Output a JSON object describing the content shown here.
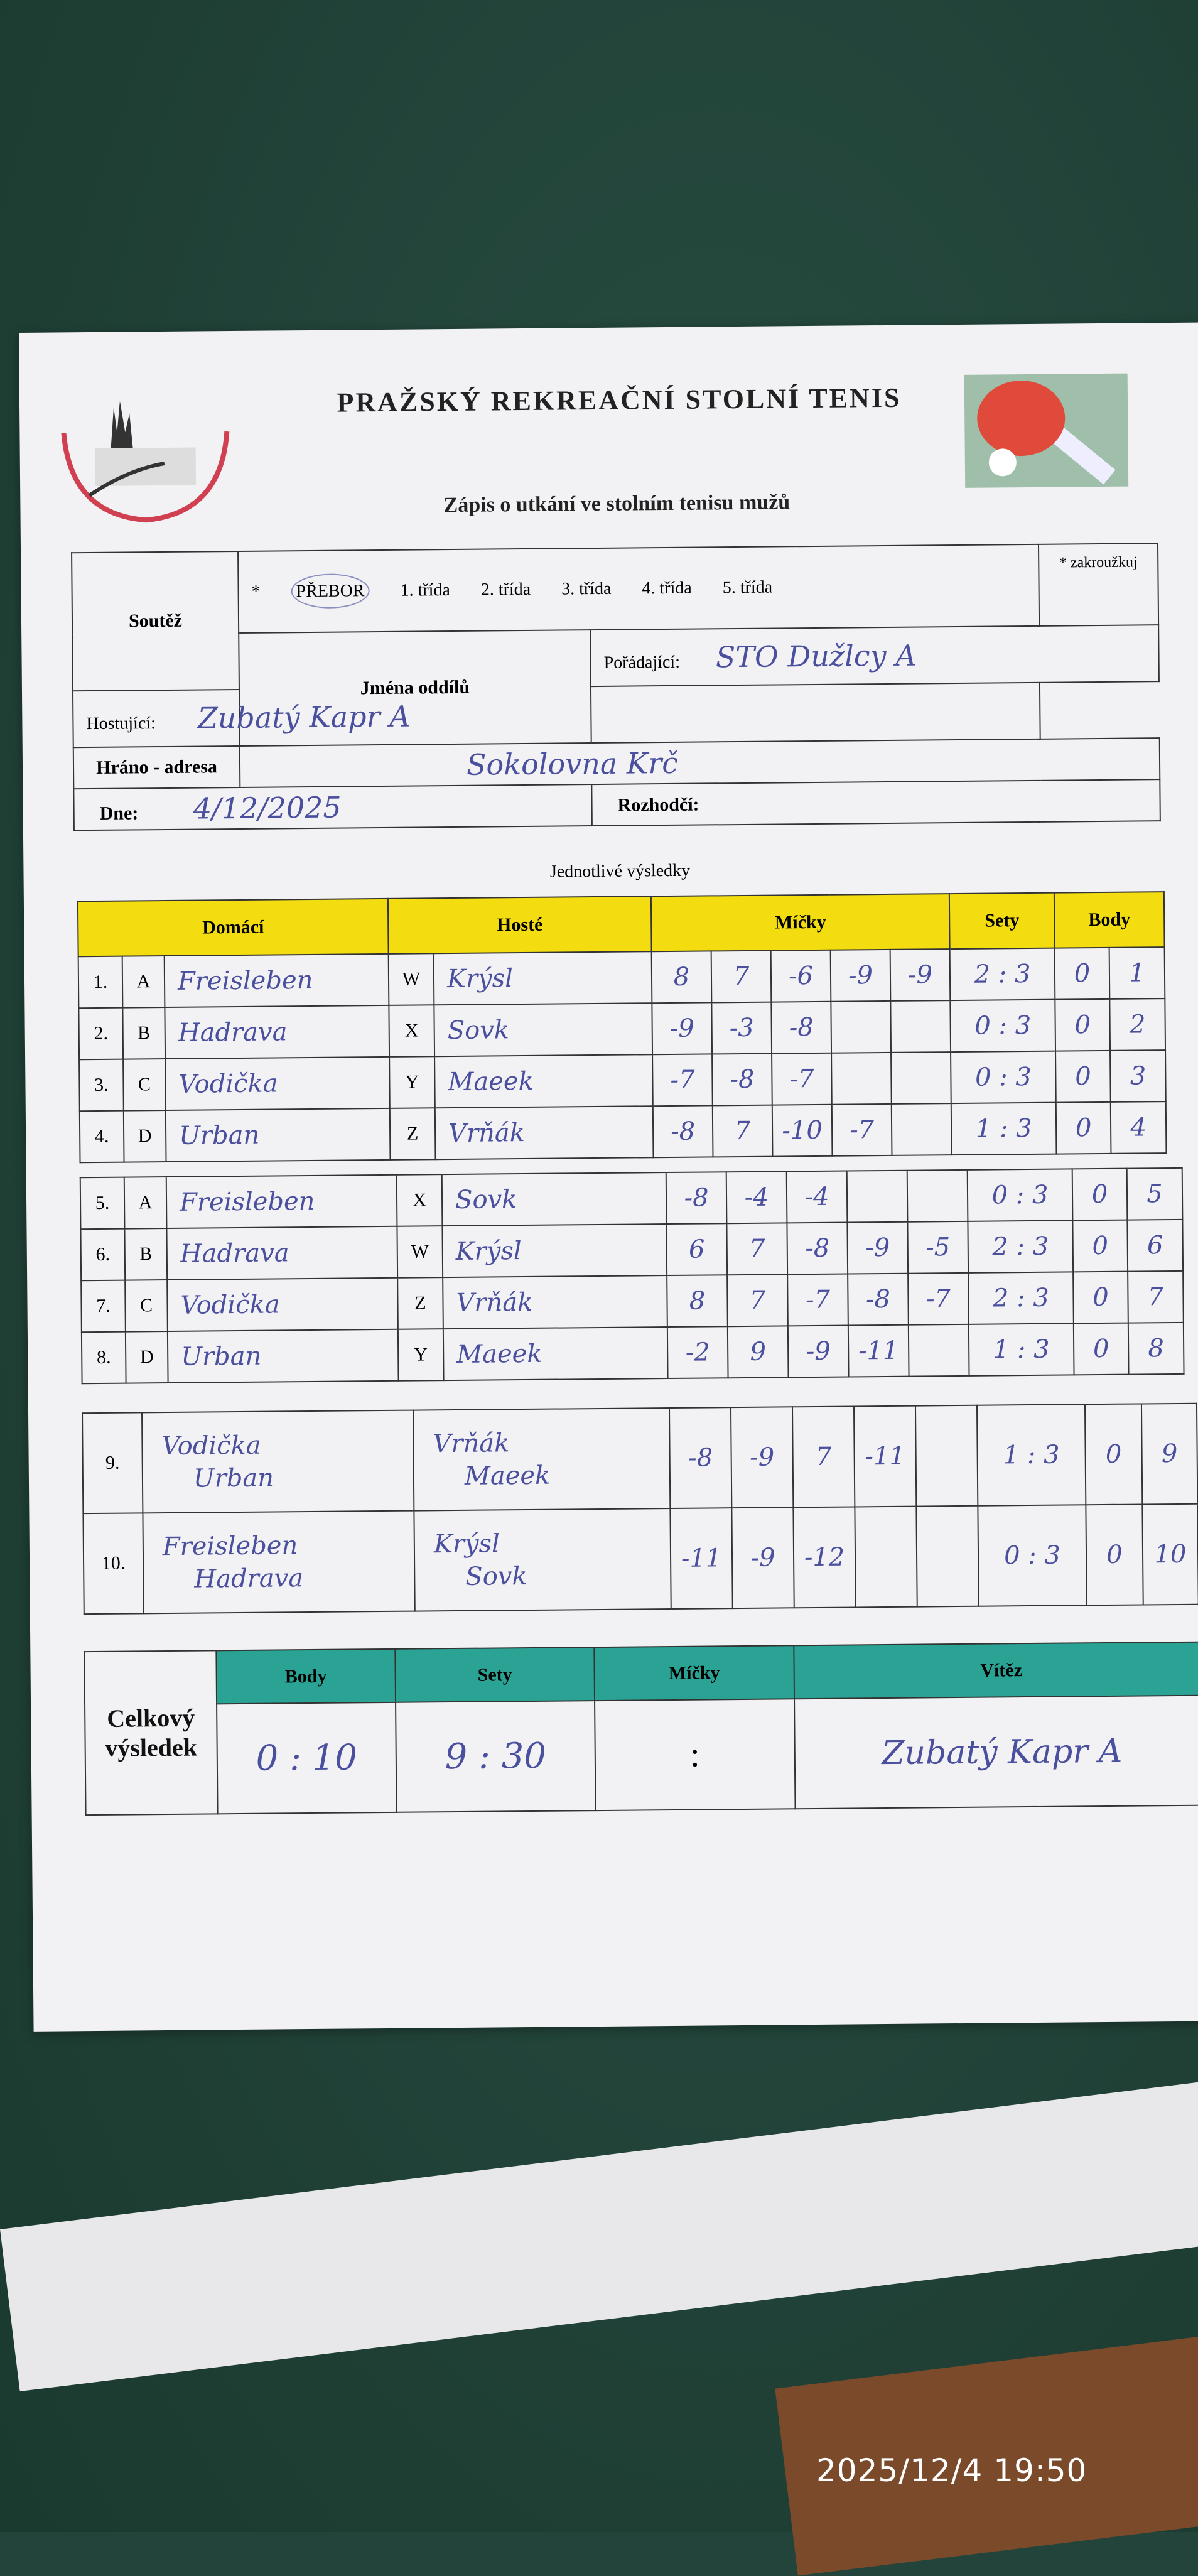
{
  "timestamp": "2025/12/4 19:50",
  "header": {
    "title": "PRAŽSKÝ REKREAČNÍ STOLNÍ TENIS",
    "subtitle": "Zápis o utkání ve stolním tenisu mužů",
    "logo_text": "PRAŽSKÝ REKREAČNÍ STOLNÍ TENIS"
  },
  "info": {
    "competition_label": "Soutěž",
    "star": "*",
    "competition_options": [
      "PŘEBOR",
      "1. třída",
      "2. třída",
      "3. třída",
      "4. třída",
      "5. třída"
    ],
    "selected_option": "PŘEBOR",
    "note": "* zakroužkuj",
    "teams_label": "Jména oddílů",
    "home_label": "Pořádající:",
    "home_value": "STO Dužlcy A",
    "guest_label": "Hostující:",
    "guest_value": "Zubatý Kapr A",
    "venue_label": "Hráno - adresa",
    "venue_value": "Sokolovna Krč",
    "date_label": "Dne:",
    "date_value": "4/12/2025",
    "referee_label": "Rozhodčí:",
    "referee_value": ""
  },
  "results": {
    "section_title": "Jednotlivé výsledky",
    "headers": {
      "home": "Domácí",
      "guest": "Hosté",
      "balls": "Míčky",
      "sets": "Sety",
      "points": "Body"
    },
    "singles": [
      {
        "no": "1.",
        "hl": "A",
        "home": "Freisleben",
        "gl": "W",
        "guest": "Krýsl",
        "balls": [
          "8",
          "7",
          "-6",
          "-9",
          "-9"
        ],
        "sets": "2 : 3",
        "ph": "0",
        "pg": "1"
      },
      {
        "no": "2.",
        "hl": "B",
        "home": "Hadrava",
        "gl": "X",
        "guest": "Sovk",
        "balls": [
          "-9",
          "-3",
          "-8",
          "",
          ""
        ],
        "sets": "0 : 3",
        "ph": "0",
        "pg": "2"
      },
      {
        "no": "3.",
        "hl": "C",
        "home": "Vodička",
        "gl": "Y",
        "guest": "Maeek",
        "balls": [
          "-7",
          "-8",
          "-7",
          "",
          ""
        ],
        "sets": "0 : 3",
        "ph": "0",
        "pg": "3"
      },
      {
        "no": "4.",
        "hl": "D",
        "home": "Urban",
        "gl": "Z",
        "guest": "Vrňák",
        "balls": [
          "-8",
          "7",
          "-10",
          "-7",
          ""
        ],
        "sets": "1 : 3",
        "ph": "0",
        "pg": "4"
      },
      {
        "no": "5.",
        "hl": "A",
        "home": "Freisleben",
        "gl": "X",
        "guest": "Sovk",
        "balls": [
          "-8",
          "-4",
          "-4",
          "",
          ""
        ],
        "sets": "0 : 3",
        "ph": "0",
        "pg": "5"
      },
      {
        "no": "6.",
        "hl": "B",
        "home": "Hadrava",
        "gl": "W",
        "guest": "Krýsl",
        "balls": [
          "6",
          "7",
          "-8",
          "-9",
          "-5"
        ],
        "sets": "2 : 3",
        "ph": "0",
        "pg": "6"
      },
      {
        "no": "7.",
        "hl": "C",
        "home": "Vodička",
        "gl": "Z",
        "guest": "Vrňák",
        "balls": [
          "8",
          "7",
          "-7",
          "-8",
          "-7"
        ],
        "sets": "2 : 3",
        "ph": "0",
        "pg": "7"
      },
      {
        "no": "8.",
        "hl": "D",
        "home": "Urban",
        "gl": "Y",
        "guest": "Maeek",
        "balls": [
          "-2",
          "9",
          "-9",
          "-11",
          ""
        ],
        "sets": "1 : 3",
        "ph": "0",
        "pg": "8"
      }
    ],
    "doubles": [
      {
        "no": "9.",
        "home1": "Vodička",
        "home2": "Urban",
        "guest1": "Vrňák",
        "guest2": "Maeek",
        "balls": [
          "-8",
          "-9",
          "7",
          "-11",
          ""
        ],
        "sets": "1 : 3",
        "ph": "0",
        "pg": "9"
      },
      {
        "no": "10.",
        "home1": "Freisleben",
        "home2": "Hadrava",
        "guest1": "Krýsl",
        "guest2": "Sovk",
        "balls": [
          "-11",
          "-9",
          "-12",
          "",
          ""
        ],
        "sets": "0 : 3",
        "ph": "0",
        "pg": "10"
      }
    ]
  },
  "totals": {
    "label": "Celkový výsledek",
    "headers": {
      "points": "Body",
      "sets": "Sety",
      "balls": "Míčky",
      "winner": "Vítěz"
    },
    "points": "0 : 10",
    "sets": "9 : 30",
    "balls": ":",
    "winner": "Zubatý Kapr A"
  },
  "colors": {
    "yellow_header": "#f3dd10",
    "teal_header": "#2aa394",
    "ink": "#4a4f9e",
    "background": "#22443a"
  }
}
